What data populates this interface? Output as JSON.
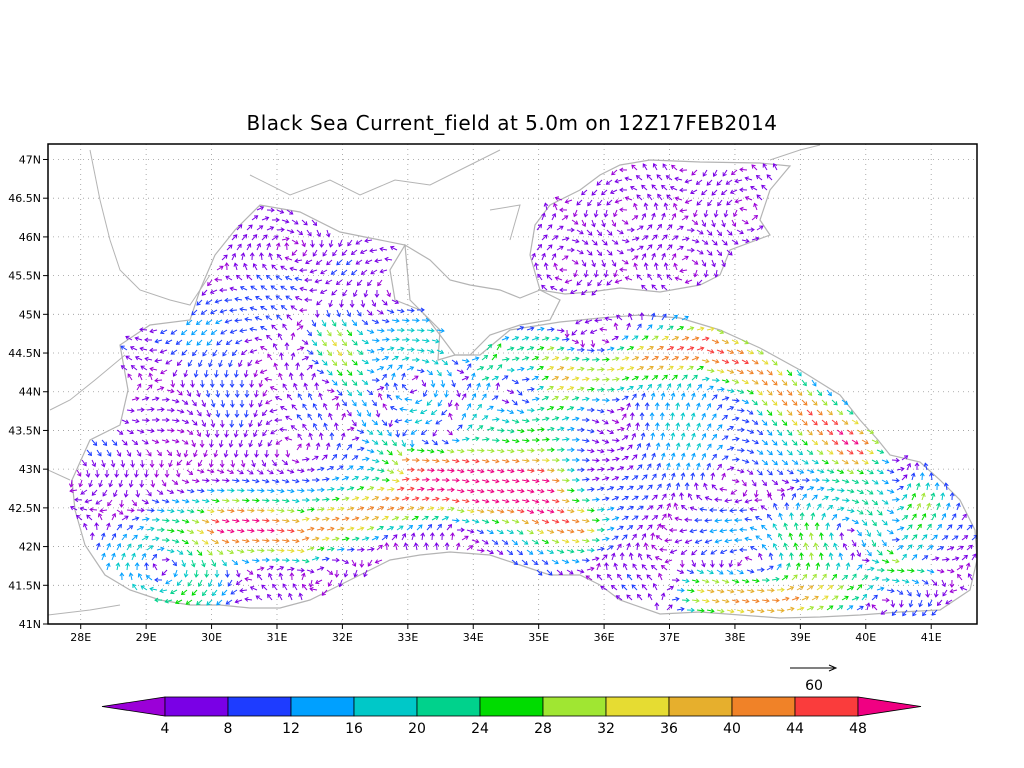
{
  "title": "Black Sea Current_field at 5.0m on 12Z17FEB2014",
  "x_ticks": [
    "28E",
    "29E",
    "30E",
    "31E",
    "32E",
    "33E",
    "34E",
    "35E",
    "36E",
    "37E",
    "38E",
    "39E",
    "40E",
    "41E"
  ],
  "y_ticks": [
    "47N",
    "46.5N",
    "46N",
    "45.5N",
    "45N",
    "44.5N",
    "44N",
    "43.5N",
    "43N",
    "42.5N",
    "42N",
    "41.5N",
    "41N"
  ],
  "reference_vector": {
    "label": "60"
  },
  "colorbar": {
    "labels": [
      "4",
      "8",
      "12",
      "16",
      "20",
      "24",
      "28",
      "32",
      "36",
      "40",
      "44",
      "48"
    ],
    "colors": [
      "#9b00d8",
      "#7a00e6",
      "#1e3cff",
      "#00a0ff",
      "#00c8c8",
      "#00d28c",
      "#00dc00",
      "#a0e632",
      "#e6dc32",
      "#e6af2d",
      "#f08228",
      "#fa3c3c",
      "#f00082"
    ]
  },
  "chart_data": {
    "type": "vector-field",
    "title": "Black Sea Current_field at 5.0m on 12Z17FEB2014",
    "x_range": [
      27.5,
      41.7
    ],
    "y_range": [
      41.0,
      47.2
    ],
    "speed_levels": [
      4,
      8,
      12,
      16,
      20,
      24,
      28,
      32,
      36,
      40,
      44,
      48
    ],
    "grid": true,
    "legend": "bottom"
  }
}
